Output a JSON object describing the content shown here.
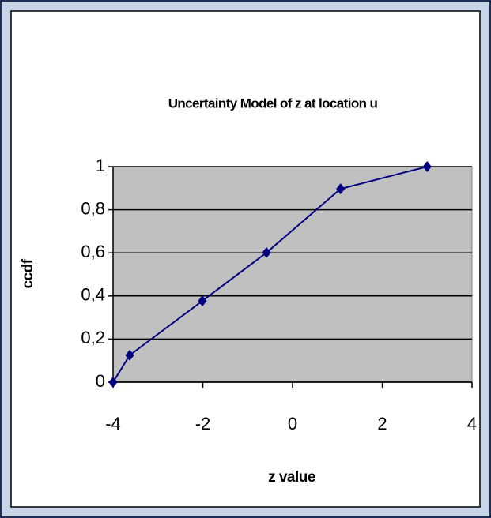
{
  "chart_data": {
    "type": "line",
    "title": "Uncertainty Model of z at location u",
    "x_label": "z value",
    "y_label": "ccdf",
    "series": [
      {
        "name": "ccdf",
        "color": "#000080",
        "x": [
          -4,
          -3.63,
          -2.01,
          -0.58,
          1.07,
          3.0
        ],
        "values": [
          0,
          0.125,
          0.377,
          0.601,
          0.897,
          1
        ]
      }
    ],
    "xlim": [
      -4,
      4
    ],
    "xticks": [
      -4,
      -2,
      0,
      2,
      4
    ],
    "ylim": [
      0,
      1
    ],
    "yticks": [
      0,
      {
        "value": 0.2,
        "label": "0,2"
      },
      {
        "value": 0.4,
        "label": "0,4"
      },
      {
        "value": 0.6,
        "label": "0,6"
      },
      {
        "value": 0.8,
        "label": "0,8"
      },
      1
    ],
    "grid": true,
    "plot_background": "#c0c0c0"
  }
}
